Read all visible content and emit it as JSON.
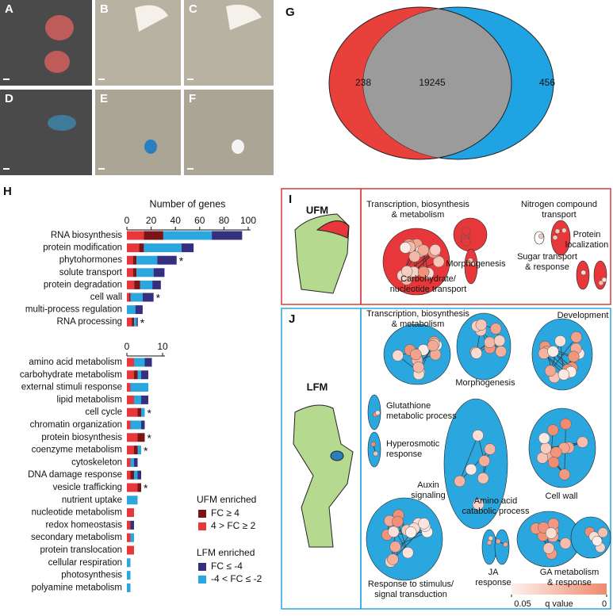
{
  "panel_labels": [
    "A",
    "B",
    "C",
    "D",
    "E",
    "F",
    "G",
    "H",
    "I",
    "J"
  ],
  "chart_data": [
    {
      "type": "venn",
      "values": [
        238,
        19245,
        456
      ],
      "colors": [
        "#e8403a",
        "#9b9b9b",
        "#1fa3e3"
      ]
    },
    {
      "type": "bar",
      "orientation": "horizontal",
      "stacked": true,
      "xlabel": "Number of genes",
      "xlim": [
        0,
        100
      ],
      "xticks": [
        0,
        20,
        40,
        60,
        80,
        100
      ],
      "categories": [
        "RNA biosynthesis",
        "protein modification",
        "phytohormones",
        "solute transport",
        "protein degradation",
        "cell wall",
        "multi-process regulation",
        "RNA processing"
      ],
      "series": [
        {
          "name": "4 > FC ≥ 2",
          "color": "#e8373a",
          "values": [
            14,
            10,
            5,
            5,
            6,
            2,
            0,
            4
          ]
        },
        {
          "name": "FC ≥ 4",
          "color": "#7a1517",
          "values": [
            16,
            4,
            3,
            3,
            5,
            1,
            0,
            2
          ]
        },
        {
          "name": "-4 < FC ≤ -2",
          "color": "#2ba7e0",
          "values": [
            40,
            31,
            17,
            14,
            10,
            10,
            7,
            2
          ]
        },
        {
          "name": "FC ≤ -4",
          "color": "#342f7f",
          "values": [
            25,
            10,
            16,
            9,
            7,
            9,
            6,
            1
          ]
        }
      ],
      "annotation": "*",
      "annotated": [
        "phytohormones",
        "cell wall",
        "RNA processing"
      ],
      "legend_groups": [
        "UFM enriched",
        "LFM enriched"
      ]
    },
    {
      "type": "bar",
      "orientation": "horizontal",
      "stacked": true,
      "xlim": [
        0,
        10
      ],
      "xticks": [
        0,
        10
      ],
      "categories": [
        "amino acid metabolism",
        "carbohydrate metabolism",
        "external stimuli response",
        "lipid metabolism",
        "cell cycle",
        "chromatin organization",
        "protein biosynthesis",
        "coenzyme metabolism",
        "cytoskeleton",
        "DNA damage response",
        "vesicle trafficking",
        "nutrient uptake",
        "nucleotide metabolism",
        "redox homeostasis",
        "secondary metabolism",
        "protein translocation",
        "cellular respiration",
        "photosynthesis",
        "polyamine metabolism"
      ],
      "series": [
        {
          "color": "#e8373a",
          "values": [
            2,
            2,
            1,
            2,
            3,
            1,
            3,
            2,
            1,
            1,
            3,
            0,
            2,
            1,
            1,
            2,
            0,
            0,
            0
          ]
        },
        {
          "color": "#7a1517",
          "values": [
            0,
            1,
            0,
            0,
            1,
            0,
            2,
            1,
            0,
            1,
            1,
            0,
            0,
            0,
            0,
            0,
            0,
            0,
            0
          ]
        },
        {
          "color": "#2ba7e0",
          "values": [
            3,
            1,
            5,
            2,
            1,
            3,
            0,
            1,
            1,
            1,
            0,
            3,
            0,
            0,
            1,
            0,
            1,
            1,
            1
          ]
        },
        {
          "color": "#342f7f",
          "values": [
            2,
            2,
            0,
            2,
            0,
            1,
            0,
            0,
            1,
            1,
            0,
            0,
            0,
            1,
            0,
            0,
            0,
            0,
            0
          ]
        }
      ],
      "annotation": "*",
      "annotated": [
        "cell cycle",
        "protein biosynthesis",
        "coenzyme metabolism",
        "vesicle trafficking"
      ]
    }
  ],
  "networks": {
    "I": {
      "tissue": "UFM",
      "clusters": [
        [
          "Transcription, biosynthesis",
          "& metabolism"
        ],
        [
          "Nitrogen compound",
          "transport"
        ],
        [
          "Morphogenesis"
        ],
        [
          "Protein",
          "localization"
        ],
        [
          "Carbohydrate/",
          "nucleotide transport"
        ],
        [
          "Sugar transport",
          "& response"
        ]
      ]
    },
    "J": {
      "tissue": "LFM",
      "clusters": [
        [
          "Transcription, biosynthesis",
          "& metabolism"
        ],
        [
          "Development"
        ],
        [
          "Morphogenesis"
        ],
        [
          "Glutathione",
          "metabolic process"
        ],
        [
          "Hyperosmotic",
          "response"
        ],
        [
          "Amino acid",
          "catabolic process"
        ],
        [
          "Cell wall"
        ],
        [
          "Auxin",
          "signaling"
        ],
        [
          "JA",
          "response"
        ],
        [
          "GA metabolism",
          "& response"
        ],
        [
          "Response to stimulus/",
          "signal transduction"
        ]
      ]
    }
  },
  "colorbar": {
    "label": "q value",
    "lim": [
      0.05,
      0
    ],
    "ticks": [
      {
        "value": 0.05,
        "label": "0.05"
      },
      0
    ],
    "colors": [
      "#fdf0ec",
      "#ef8a6e"
    ]
  }
}
